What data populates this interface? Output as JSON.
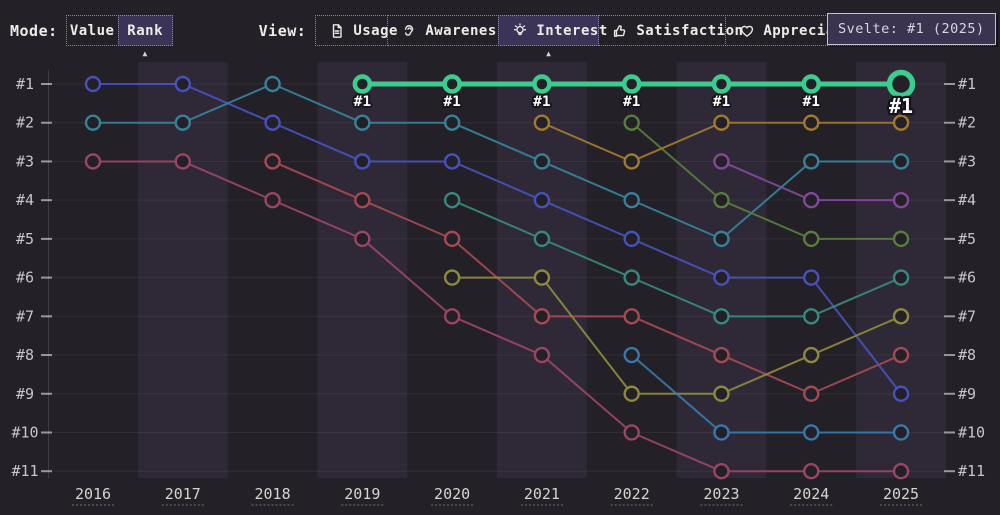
{
  "toolbar": {
    "mode_label": "Mode:",
    "modes": [
      {
        "label": "Value",
        "selected": false
      },
      {
        "label": "Rank",
        "selected": true
      }
    ],
    "view_label": "View:",
    "views": [
      {
        "label": "Usage",
        "icon": "document-icon",
        "selected": false
      },
      {
        "label": "Awareness",
        "icon": "ear-icon",
        "selected": false
      },
      {
        "label": "Interest",
        "icon": "lightbulb-icon",
        "selected": true
      },
      {
        "label": "Satisfaction",
        "icon": "thumbs-up-icon",
        "selected": false
      },
      {
        "label": "Appreciation",
        "icon": "heart-icon",
        "selected": false
      }
    ],
    "tooltip": {
      "text": "Svelte: #1 (2025)"
    }
  },
  "colors": {
    "background": "#242027",
    "band": "rgba(105,93,140,0.16)",
    "gridline": "rgba(255,255,255,0.055)",
    "axis_line": "rgba(255,255,255,0.13)",
    "tick": "#9a95a0",
    "year_underline": "#746e6a",
    "highlight_green": "#3bcd8e",
    "selected_button_bg": "#3b3456",
    "tooltip_bg": "#3a3450"
  },
  "chart_data": {
    "type": "line",
    "subtype": "bump-rank",
    "title": "",
    "xlabel": "",
    "ylabel": "",
    "x": [
      2016,
      2017,
      2018,
      2019,
      2020,
      2021,
      2022,
      2023,
      2024,
      2025
    ],
    "y_axis": {
      "labels": [
        "#1",
        "#2",
        "#3",
        "#4",
        "#5",
        "#6",
        "#7",
        "#8",
        "#9",
        "#10",
        "#11"
      ],
      "min_rank": 1,
      "max_rank": 11,
      "inverted": true,
      "shown_on_both_sides": true
    },
    "grid": true,
    "legend": "none",
    "series": [
      {
        "name": "series-rose",
        "color": "#9a4566",
        "highlight": false,
        "ranks": [
          3,
          3,
          4,
          5,
          7,
          8,
          10,
          11,
          11,
          11
        ]
      },
      {
        "name": "series-red",
        "color": "#a64a52",
        "highlight": false,
        "ranks": [
          null,
          null,
          3,
          4,
          5,
          7,
          7,
          8,
          9,
          8
        ]
      },
      {
        "name": "series-indigo",
        "color": "#4652bc",
        "highlight": false,
        "ranks": [
          1,
          1,
          2,
          3,
          3,
          4,
          5,
          6,
          6,
          9
        ]
      },
      {
        "name": "series-teal",
        "color": "#35839a",
        "highlight": false,
        "ranks": [
          2,
          2,
          1,
          2,
          2,
          3,
          4,
          5,
          3,
          3
        ]
      },
      {
        "name": "series-seagreen",
        "color": "#37897f",
        "highlight": false,
        "ranks": [
          null,
          null,
          null,
          null,
          4,
          5,
          6,
          7,
          7,
          6
        ]
      },
      {
        "name": "series-olive",
        "color": "#8d8a3e",
        "highlight": false,
        "ranks": [
          null,
          null,
          null,
          null,
          6,
          6,
          9,
          9,
          8,
          7
        ]
      },
      {
        "name": "series-blue",
        "color": "#3878ad",
        "highlight": false,
        "ranks": [
          null,
          null,
          null,
          null,
          null,
          null,
          8,
          10,
          10,
          10
        ]
      },
      {
        "name": "series-darkgreen",
        "color": "#587d3c",
        "highlight": false,
        "ranks": [
          null,
          null,
          null,
          null,
          null,
          null,
          2,
          4,
          5,
          5
        ]
      },
      {
        "name": "series-amber",
        "color": "#a07a2e",
        "highlight": false,
        "ranks": [
          null,
          null,
          null,
          null,
          null,
          2,
          3,
          2,
          2,
          2
        ]
      },
      {
        "name": "series-purple",
        "color": "#84489a",
        "highlight": false,
        "ranks": [
          null,
          null,
          null,
          null,
          null,
          null,
          null,
          3,
          4,
          4
        ]
      },
      {
        "name": "Svelte",
        "color": "#3bcd8e",
        "highlight": true,
        "point_label": "#1",
        "ranks": [
          null,
          null,
          null,
          1,
          1,
          1,
          1,
          1,
          1,
          1
        ]
      }
    ]
  }
}
